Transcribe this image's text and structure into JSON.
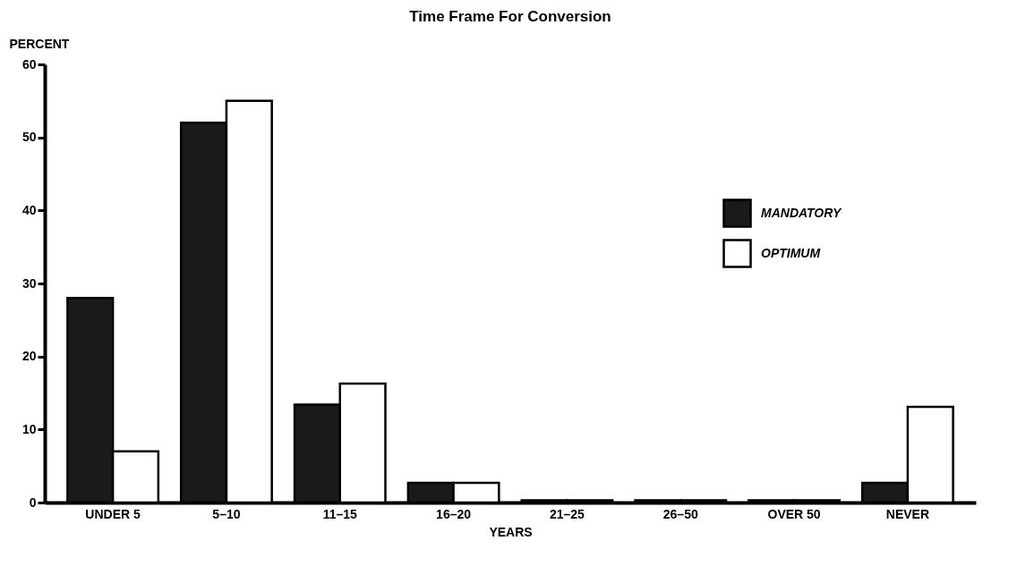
{
  "chart_data": {
    "type": "bar",
    "title": "Time Frame For Conversion",
    "xlabel": "YEARS",
    "ylabel": "PERCENT",
    "categories": [
      "UNDER 5",
      "5–10",
      "11–15",
      "16–20",
      "21–25",
      "26–50",
      "OVER 50",
      "NEVER"
    ],
    "series": [
      {
        "name": "MANDATORY",
        "color": "#1a1a1a",
        "values": [
          28,
          52,
          13.4,
          2.7,
          0.3,
          0.3,
          0.3,
          2.7
        ]
      },
      {
        "name": "OPTIMUM",
        "color": "#ffffff",
        "values": [
          7,
          55,
          16.3,
          2.7,
          0.3,
          0.3,
          0.3,
          13.1
        ]
      }
    ],
    "ylim": [
      0,
      60
    ],
    "yticks": [
      0,
      10,
      20,
      30,
      40,
      50,
      60
    ],
    "grid": false,
    "legend": "top right"
  }
}
